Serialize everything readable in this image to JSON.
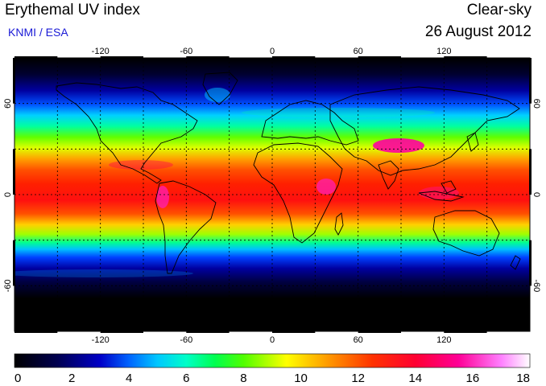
{
  "header": {
    "title": "Erythemal UV index",
    "source": "KNMI / ESA",
    "sky_condition": "Clear-sky",
    "date": "26 August 2012"
  },
  "map": {
    "projection": "plate-carree",
    "lon_range": [
      -180,
      180
    ],
    "lat_range": [
      -90,
      90
    ],
    "lon_ticks": [
      "-120",
      "-60",
      "0",
      "60",
      "120"
    ],
    "lat_ticks": [
      "60",
      "0",
      "-60"
    ],
    "grid": "dotted",
    "ocean_mask": "none",
    "coastlines": true
  },
  "colorbar": {
    "min": 0,
    "max": 18,
    "labels": [
      "0",
      "2",
      "4",
      "6",
      "8",
      "10",
      "12",
      "14",
      "16",
      "18"
    ],
    "stops": [
      {
        "value": 0,
        "color": "#000000"
      },
      {
        "value": 1.5,
        "color": "#000050"
      },
      {
        "value": 3,
        "color": "#0000c8"
      },
      {
        "value": 4,
        "color": "#0064ff"
      },
      {
        "value": 5,
        "color": "#00c8ff"
      },
      {
        "value": 6,
        "color": "#00ffc8"
      },
      {
        "value": 7,
        "color": "#00ff50"
      },
      {
        "value": 8,
        "color": "#50ff00"
      },
      {
        "value": 9.5,
        "color": "#ffff00"
      },
      {
        "value": 11,
        "color": "#ff9600"
      },
      {
        "value": 12.5,
        "color": "#ff3200"
      },
      {
        "value": 14,
        "color": "#ff0032"
      },
      {
        "value": 15.5,
        "color": "#ff0096"
      },
      {
        "value": 17,
        "color": "#ff80ff"
      },
      {
        "value": 18,
        "color": "#ffffff"
      }
    ]
  }
}
